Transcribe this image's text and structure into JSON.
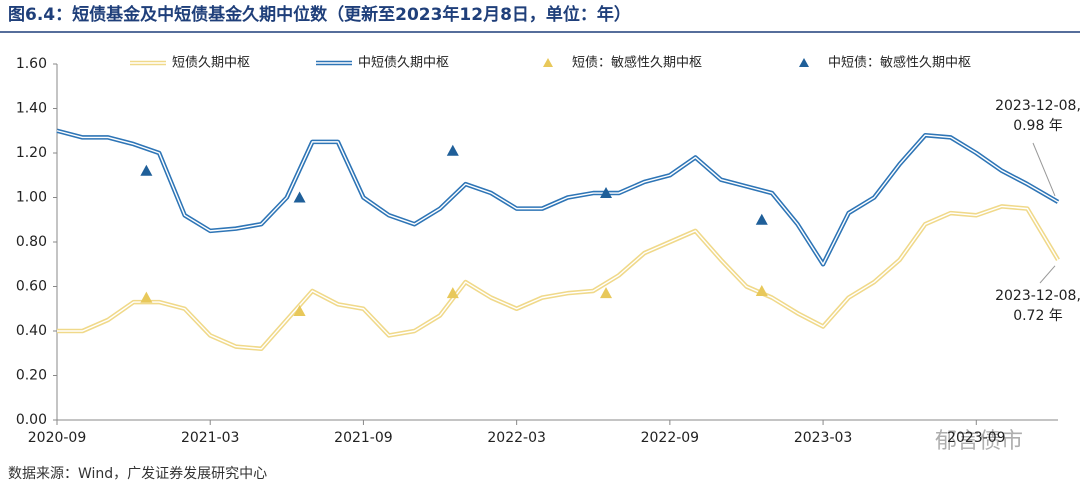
{
  "title": "图6.4：短债基金及中短债基金久期中位数（更新至2023年12月8日，单位：年）",
  "source": "数据来源：Wind，广发证券发展研究中心",
  "watermark": "郁言债市",
  "chart_data": {
    "type": "line",
    "x": [
      0,
      1,
      2,
      3,
      4,
      5,
      6,
      7,
      8,
      9,
      10,
      11,
      12,
      13,
      14,
      15,
      16,
      17,
      18,
      19,
      20,
      21,
      22,
      23,
      24,
      25,
      26,
      27,
      28,
      29,
      30,
      31,
      32,
      33,
      34,
      35,
      36,
      37,
      38,
      39.2
    ],
    "xlim": [
      0,
      39.2
    ],
    "xticks": [
      {
        "value": 0,
        "label": "2020-09"
      },
      {
        "value": 6,
        "label": "2021-03"
      },
      {
        "value": 12,
        "label": "2021-09"
      },
      {
        "value": 18,
        "label": "2022-03"
      },
      {
        "value": 24,
        "label": "2022-09"
      },
      {
        "value": 30,
        "label": "2023-03"
      },
      {
        "value": 36,
        "label": "2023-09"
      }
    ],
    "ylim": [
      0,
      1.6
    ],
    "yticks": [
      {
        "value": 0,
        "label": "0.00"
      },
      {
        "value": 0.2,
        "label": "0.20"
      },
      {
        "value": 0.4,
        "label": "0.40"
      },
      {
        "value": 0.6,
        "label": "0.60"
      },
      {
        "value": 0.8,
        "label": "0.80"
      },
      {
        "value": 1,
        "label": "1.00"
      },
      {
        "value": 1.2,
        "label": "1.20"
      },
      {
        "value": 1.4,
        "label": "1.40"
      },
      {
        "value": 1.6,
        "label": "1.60"
      }
    ],
    "series": [
      {
        "name": "短债久期中枢",
        "color": "#f0d98a",
        "values": [
          0.4,
          0.4,
          0.45,
          0.53,
          0.53,
          0.5,
          0.38,
          0.33,
          0.32,
          0.45,
          0.58,
          0.52,
          0.5,
          0.38,
          0.4,
          0.47,
          0.62,
          0.55,
          0.5,
          0.55,
          0.57,
          0.58,
          0.65,
          0.75,
          0.8,
          0.85,
          0.72,
          0.6,
          0.55,
          0.48,
          0.42,
          0.55,
          0.62,
          0.72,
          0.88,
          0.93,
          0.92,
          0.96,
          0.95,
          0.72
        ]
      },
      {
        "name": "中短债久期中枢",
        "color": "#2e75b6",
        "values": [
          1.3,
          1.27,
          1.27,
          1.24,
          1.2,
          0.92,
          0.85,
          0.86,
          0.88,
          1.0,
          1.25,
          1.25,
          1.0,
          0.92,
          0.88,
          0.95,
          1.06,
          1.02,
          0.95,
          0.95,
          1.0,
          1.02,
          1.02,
          1.07,
          1.1,
          1.18,
          1.08,
          1.05,
          1.02,
          0.88,
          0.7,
          0.93,
          1.0,
          1.15,
          1.28,
          1.27,
          1.2,
          1.12,
          1.06,
          0.98
        ]
      },
      {
        "name": "短债：敏感性久期中枢",
        "color": "#e8c85a",
        "marker": "triangle",
        "x": [
          3.5,
          9.5,
          15.5,
          21.5,
          27.6
        ],
        "values": [
          0.55,
          0.49,
          0.57,
          0.57,
          0.58
        ]
      },
      {
        "name": "中短债：敏感性久期中枢",
        "color": "#1f5f99",
        "marker": "triangle",
        "x": [
          3.5,
          9.5,
          15.5,
          21.5,
          27.6
        ],
        "values": [
          1.12,
          1.0,
          1.21,
          1.02,
          0.9
        ]
      }
    ],
    "annotations": [
      {
        "text": [
          "2023-12-08,",
          "0.98 年"
        ],
        "x": 39.2,
        "y": 0.98
      },
      {
        "text": [
          "2023-12-08,",
          "0.72 年"
        ],
        "x": 39.2,
        "y": 0.72
      }
    ]
  }
}
